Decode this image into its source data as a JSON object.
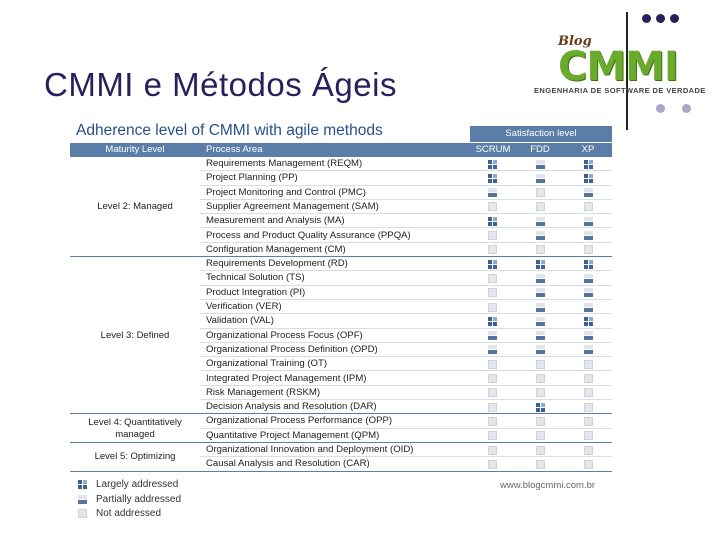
{
  "slide": {
    "title": "CMMI e Métodos Ágeis"
  },
  "logo": {
    "blog": "Blog",
    "name": "CMMI",
    "tagline": "ENGENHARIA DE SOFTWARE DE VERDADE"
  },
  "table": {
    "title": "Adherence level of CMMI with agile methods",
    "satisfaction_header": "Satisfaction level",
    "headers": {
      "level": "Maturity Level",
      "area": "Process Area",
      "scrum": "SCRUM",
      "fdd": "FDD",
      "xp": "XP"
    },
    "groups": [
      {
        "level": "Level 2: Managed",
        "rows": [
          {
            "area": "Requirements Management (REQM)",
            "scrum": "largely",
            "fdd": "partially",
            "xp": "largely"
          },
          {
            "area": "Project Planning (PP)",
            "scrum": "largely",
            "fdd": "partially",
            "xp": "largely"
          },
          {
            "area": "Project Monitoring and Control (PMC)",
            "scrum": "partially",
            "fdd": "not",
            "xp": "partially"
          },
          {
            "area": "Supplier Agreement Management (SAM)",
            "scrum": "not",
            "fdd": "not",
            "xp": "not"
          },
          {
            "area": "Measurement and Analysis (MA)",
            "scrum": "largely",
            "fdd": "partially",
            "xp": "partially"
          },
          {
            "area": "Process and Product Quality Assurance (PPQA)",
            "scrum": "not",
            "fdd": "partially",
            "xp": "partially"
          },
          {
            "area": "Configuration Management (CM)",
            "scrum": "not",
            "fdd": "not",
            "xp": "not"
          }
        ]
      },
      {
        "level": "Level 3: Defined",
        "rows": [
          {
            "area": "Requirements Development (RD)",
            "scrum": "largely",
            "fdd": "largely",
            "xp": "largely"
          },
          {
            "area": "Technical Solution (TS)",
            "scrum": "not",
            "fdd": "partially",
            "xp": "partially"
          },
          {
            "area": "Product Integration (PI)",
            "scrum": "not",
            "fdd": "partially",
            "xp": "partially"
          },
          {
            "area": "Verification (VER)",
            "scrum": "not",
            "fdd": "partially",
            "xp": "partially"
          },
          {
            "area": "Validation (VAL)",
            "scrum": "largely",
            "fdd": "partially",
            "xp": "largely"
          },
          {
            "area": "Organizational Process Focus (OPF)",
            "scrum": "partially",
            "fdd": "partially",
            "xp": "partially"
          },
          {
            "area": "Organizational Process Definition (OPD)",
            "scrum": "partially",
            "fdd": "partially",
            "xp": "partially"
          },
          {
            "area": "Organizational Training (OT)",
            "scrum": "not",
            "fdd": "not",
            "xp": "not"
          },
          {
            "area": "Integrated Project Management (IPM)",
            "scrum": "not",
            "fdd": "not",
            "xp": "not"
          },
          {
            "area": "Risk Management (RSKM)",
            "scrum": "not",
            "fdd": "not",
            "xp": "not"
          },
          {
            "area": "Decision Analysis and Resolution (DAR)",
            "scrum": "not",
            "fdd": "largely",
            "xp": "not"
          }
        ]
      },
      {
        "level": "Level 4: Quantitatively managed",
        "rows": [
          {
            "area": "Organizational Process Performance (OPP)",
            "scrum": "not",
            "fdd": "not",
            "xp": "not"
          },
          {
            "area": "Quantitative Project Management (QPM)",
            "scrum": "not",
            "fdd": "not",
            "xp": "not"
          }
        ]
      },
      {
        "level": "Level 5: Optimizing",
        "rows": [
          {
            "area": "Organizational Innovation and Deployment (OID)",
            "scrum": "not",
            "fdd": "not",
            "xp": "not"
          },
          {
            "area": "Causal Analysis and Resolution (CAR)",
            "scrum": "not",
            "fdd": "not",
            "xp": "not"
          }
        ]
      }
    ]
  },
  "legend": [
    {
      "key": "largely",
      "label": "Largely addressed"
    },
    {
      "key": "partially",
      "label": "Partially addressed"
    },
    {
      "key": "not",
      "label": "Not addressed"
    }
  ],
  "source": "www.blogcmmi.com.br"
}
